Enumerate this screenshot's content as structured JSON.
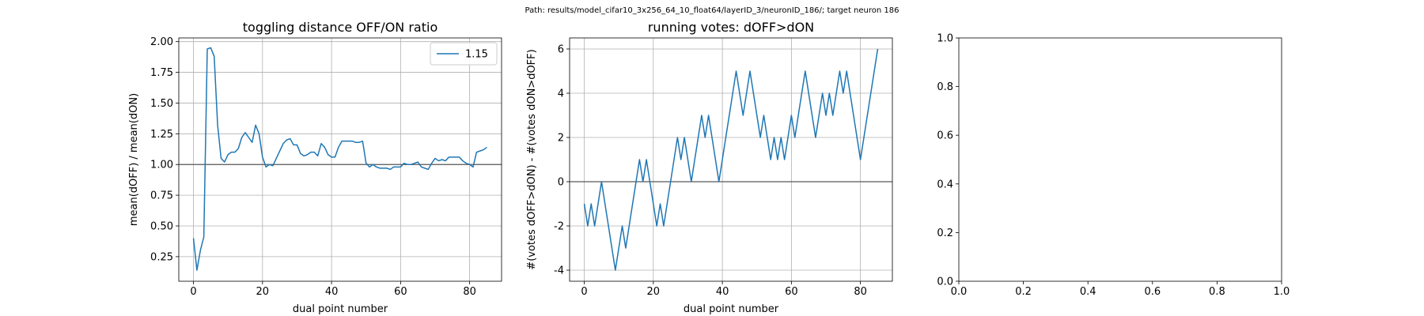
{
  "suptitle": "Path: results/model_cifar10_3x256_64_10_float64/layerID_3/neuronID_186/; target neuron 186",
  "chart_data": [
    {
      "type": "line",
      "title": "toggling distance OFF/ON ratio",
      "xlabel": "dual point number",
      "ylabel": "mean(dOFF) / mean(dON)",
      "xlim": [
        -4.25,
        89.25
      ],
      "ylim": [
        0.05,
        2.03
      ],
      "xticks": [
        0,
        20,
        40,
        60,
        80
      ],
      "yticks": [
        0.25,
        0.5,
        0.75,
        1.0,
        1.25,
        1.5,
        1.75,
        2.0
      ],
      "ytick_labels": [
        "0.25",
        "0.50",
        "0.75",
        "1.00",
        "1.25",
        "1.50",
        "1.75",
        "2.00"
      ],
      "grid": true,
      "hline": 1.0,
      "legend": {
        "position": "upper right",
        "entries": [
          "1.15"
        ]
      },
      "series": [
        {
          "name": "1.15",
          "color": "#1f77b4",
          "x": [
            0,
            1,
            2,
            3,
            4,
            5,
            6,
            7,
            8,
            9,
            10,
            11,
            12,
            13,
            14,
            15,
            16,
            17,
            18,
            19,
            20,
            21,
            22,
            23,
            24,
            25,
            26,
            27,
            28,
            29,
            30,
            31,
            32,
            33,
            34,
            35,
            36,
            37,
            38,
            39,
            40,
            41,
            42,
            43,
            44,
            45,
            46,
            47,
            48,
            49,
            50,
            51,
            52,
            53,
            54,
            55,
            56,
            57,
            58,
            59,
            60,
            61,
            62,
            63,
            64,
            65,
            66,
            67,
            68,
            69,
            70,
            71,
            72,
            73,
            74,
            75,
            76,
            77,
            78,
            79,
            80,
            81,
            82,
            83,
            84,
            85
          ],
          "y": [
            0.4,
            0.14,
            0.3,
            0.41,
            1.94,
            1.95,
            1.88,
            1.32,
            1.05,
            1.02,
            1.08,
            1.1,
            1.1,
            1.13,
            1.22,
            1.26,
            1.22,
            1.18,
            1.32,
            1.25,
            1.06,
            0.98,
            1.0,
            0.99,
            1.05,
            1.11,
            1.17,
            1.2,
            1.21,
            1.16,
            1.16,
            1.09,
            1.07,
            1.08,
            1.1,
            1.1,
            1.07,
            1.17,
            1.14,
            1.08,
            1.06,
            1.06,
            1.14,
            1.19,
            1.19,
            1.19,
            1.19,
            1.18,
            1.18,
            1.19,
            1.01,
            0.98,
            1.0,
            0.98,
            0.97,
            0.97,
            0.97,
            0.96,
            0.98,
            0.98,
            0.98,
            1.01,
            1.0,
            1.0,
            1.01,
            1.02,
            0.98,
            0.97,
            0.96,
            1.01,
            1.05,
            1.03,
            1.04,
            1.03,
            1.06,
            1.06,
            1.06,
            1.06,
            1.03,
            1.01,
            1.0,
            0.98,
            1.1,
            1.11,
            1.12,
            1.14
          ]
        }
      ]
    },
    {
      "type": "line",
      "title": "running votes: dOFF>dON",
      "xlabel": "dual point number",
      "ylabel": "#(votes dOFF>dON) - #(votes dON>dOFF)",
      "xlim": [
        -4.25,
        89.25
      ],
      "ylim": [
        -4.5,
        6.5
      ],
      "xticks": [
        0,
        20,
        40,
        60,
        80
      ],
      "yticks": [
        -4,
        -2,
        0,
        2,
        4,
        6
      ],
      "grid": true,
      "hline": 0,
      "series": [
        {
          "color": "#1f77b4",
          "x": [
            0,
            1,
            2,
            3,
            4,
            5,
            6,
            7,
            8,
            9,
            10,
            11,
            12,
            13,
            14,
            15,
            16,
            17,
            18,
            19,
            20,
            21,
            22,
            23,
            24,
            25,
            26,
            27,
            28,
            29,
            30,
            31,
            32,
            33,
            34,
            35,
            36,
            37,
            38,
            39,
            40,
            41,
            42,
            43,
            44,
            45,
            46,
            47,
            48,
            49,
            50,
            51,
            52,
            53,
            54,
            55,
            56,
            57,
            58,
            59,
            60,
            61,
            62,
            63,
            64,
            65,
            66,
            67,
            68,
            69,
            70,
            71,
            72,
            73,
            74,
            75,
            76,
            77,
            78,
            79,
            80,
            81,
            82,
            83,
            84,
            85
          ],
          "y": [
            -1,
            -2,
            -1,
            -2,
            -1,
            0,
            -1,
            -2,
            -3,
            -4,
            -3,
            -2,
            -3,
            -2,
            -1,
            0,
            1,
            0,
            1,
            0,
            -1,
            -2,
            -1,
            -2,
            -1,
            0,
            1,
            2,
            1,
            2,
            1,
            0,
            1,
            2,
            3,
            2,
            3,
            2,
            1,
            0,
            1,
            2,
            3,
            4,
            5,
            4,
            3,
            4,
            5,
            4,
            3,
            2,
            3,
            2,
            1,
            2,
            1,
            2,
            1,
            2,
            3,
            2,
            3,
            4,
            5,
            4,
            3,
            2,
            3,
            4,
            3,
            4,
            3,
            4,
            5,
            4,
            5,
            4,
            3,
            2,
            1,
            2,
            3,
            4,
            5,
            6
          ]
        }
      ]
    },
    {
      "type": "line",
      "title": "",
      "xlim": [
        0,
        1
      ],
      "ylim": [
        0,
        1
      ],
      "xticks": [
        0.0,
        0.2,
        0.4,
        0.6,
        0.8,
        1.0
      ],
      "yticks": [
        0.0,
        0.2,
        0.4,
        0.6,
        0.8,
        1.0
      ],
      "xtick_labels": [
        "0.0",
        "0.2",
        "0.4",
        "0.6",
        "0.8",
        "1.0"
      ],
      "ytick_labels": [
        "0.0",
        "0.2",
        "0.4",
        "0.6",
        "0.8",
        "1.0"
      ],
      "grid": false,
      "series": []
    }
  ]
}
